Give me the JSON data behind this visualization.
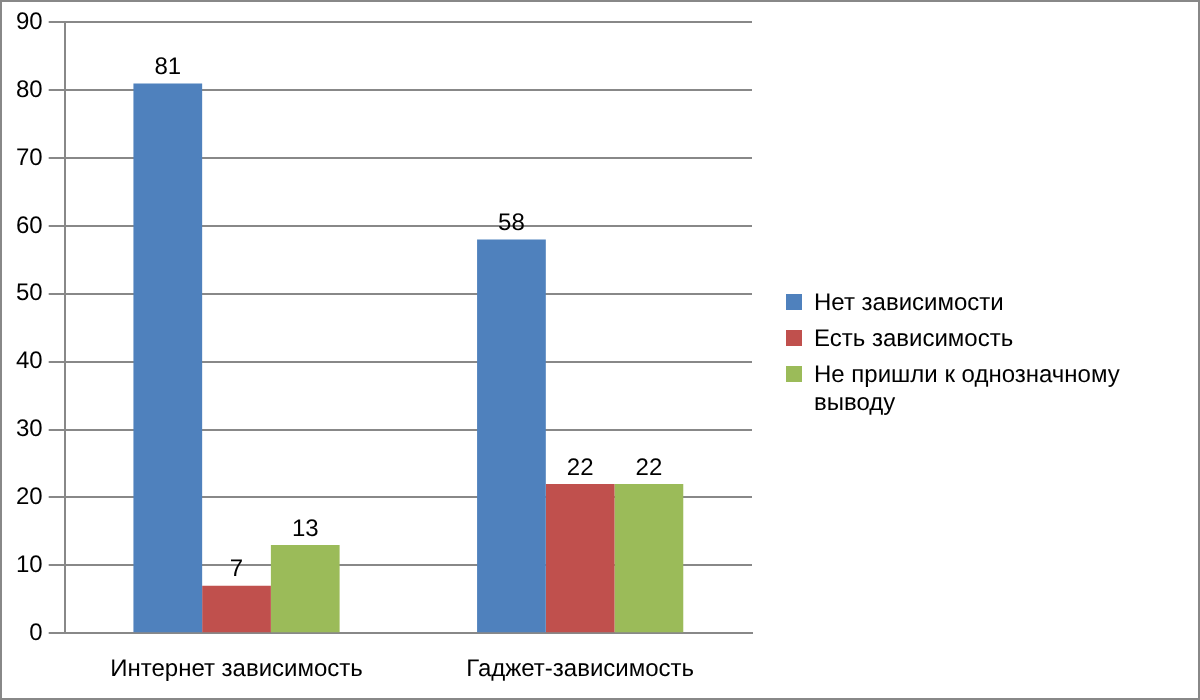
{
  "chart_data": {
    "type": "bar",
    "categories": [
      "Интернет зависимость",
      "Гаджет-зависимость"
    ],
    "series": [
      {
        "name": "Нет зависимости",
        "color": "#4f81bd",
        "values": [
          81,
          58
        ]
      },
      {
        "name": "Есть зависимость",
        "color": "#c0504d",
        "values": [
          7,
          22
        ]
      },
      {
        "name": "Не пришли к однозначному выводу",
        "color": "#9bbb59",
        "values": [
          13,
          22
        ]
      }
    ],
    "ylim": [
      0,
      90
    ],
    "yticks": [
      0,
      10,
      20,
      30,
      40,
      50,
      60,
      70,
      80,
      90
    ],
    "grid": "y",
    "legend": "right",
    "data_labels": true
  }
}
